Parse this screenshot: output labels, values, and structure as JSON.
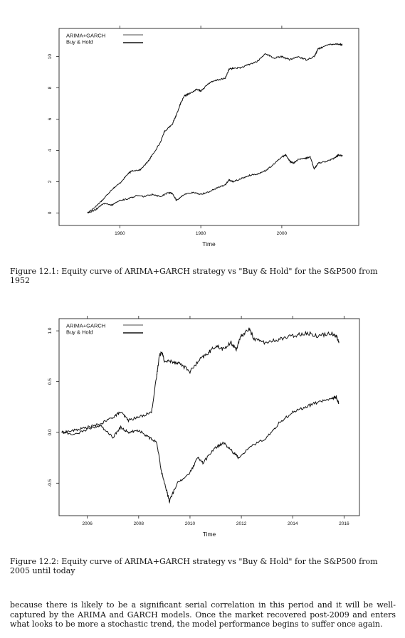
{
  "figures": [
    {
      "caption": "Figure 12.1: Equity curve of ARIMA+GARCH strategy vs \"Buy & Hold\" for the S&P500 from 1952",
      "chart_data": {
        "type": "line",
        "xlabel": "Time",
        "ylabel": "",
        "xlim": [
          1945,
          2019
        ],
        "ylim": [
          -0.8,
          11.8
        ],
        "x_ticks": [
          1960,
          1980,
          2000
        ],
        "y_ticks": [
          0,
          2,
          4,
          6,
          8,
          10
        ],
        "legend_placement": "top-left",
        "series": [
          {
            "name": "ARIMA+GARCH",
            "x": [
              1952,
              1954,
              1956,
              1958,
              1960,
              1962,
              1963,
              1965,
              1967,
              1968,
              1970,
              1971,
              1973,
              1974,
              1975,
              1976,
              1977,
              1979,
              1980,
              1982,
              1984,
              1986,
              1987,
              1988,
              1990,
              1992,
              1994,
              1996,
              1998,
              2000,
              2002,
              2004,
              2006,
              2008,
              2009,
              2010,
              2012,
              2014,
              2015
            ],
            "y": [
              0,
              0.4,
              0.9,
              1.5,
              1.9,
              2.5,
              2.7,
              2.75,
              3.3,
              3.7,
              4.5,
              5.2,
              5.7,
              6.3,
              7.0,
              7.5,
              7.6,
              7.9,
              7.8,
              8.3,
              8.5,
              8.6,
              9.2,
              9.25,
              9.3,
              9.5,
              9.7,
              10.2,
              9.9,
              10.0,
              9.8,
              10.0,
              9.8,
              10.0,
              10.5,
              10.6,
              10.8,
              10.8,
              10.75
            ]
          },
          {
            "name": "Buy & Hold",
            "x": [
              1952,
              1954,
              1956,
              1958,
              1960,
              1962,
              1964,
              1966,
              1968,
              1970,
              1972,
              1973,
              1974,
              1976,
              1978,
              1980,
              1982,
              1984,
              1986,
              1987,
              1988,
              1990,
              1992,
              1994,
              1996,
              1998,
              2000,
              2001,
              2002,
              2003,
              2004,
              2006,
              2007,
              2008,
              2009,
              2011,
              2013,
              2014,
              2015
            ],
            "y": [
              0,
              0.2,
              0.6,
              0.5,
              0.8,
              0.9,
              1.1,
              1.05,
              1.2,
              1.05,
              1.3,
              1.25,
              0.8,
              1.2,
              1.3,
              1.2,
              1.35,
              1.6,
              1.8,
              2.1,
              2.0,
              2.2,
              2.4,
              2.5,
              2.7,
              3.1,
              3.6,
              3.7,
              3.3,
              3.2,
              3.4,
              3.5,
              3.6,
              2.8,
              3.2,
              3.3,
              3.5,
              3.7,
              3.65
            ]
          }
        ]
      }
    },
    {
      "caption": "Figure 12.2: Equity curve of ARIMA+GARCH strategy vs \"Buy & Hold\" for the S&P500 from 2005 until today",
      "chart_data": {
        "type": "line",
        "xlabel": "Time",
        "ylabel": "",
        "xlim": [
          2004.9,
          2016.6
        ],
        "ylim": [
          -0.82,
          1.12
        ],
        "x_ticks": [
          2006,
          2008,
          2010,
          2012,
          2014,
          2016
        ],
        "y_ticks": [
          -0.5,
          0.0,
          0.5,
          1.0
        ],
        "legend_placement": "top-left",
        "series": [
          {
            "name": "ARIMA+GARCH",
            "x": [
              2005.0,
              2005.5,
              2006.0,
              2006.5,
              2007.0,
              2007.3,
              2007.6,
              2008.0,
              2008.5,
              2008.7,
              2008.8,
              2008.9,
              2009.0,
              2009.3,
              2009.6,
              2010.0,
              2010.4,
              2010.7,
              2011.0,
              2011.3,
              2011.6,
              2011.8,
              2012.0,
              2012.3,
              2012.5,
              2013.0,
              2013.5,
              2014.0,
              2014.5,
              2015.0,
              2015.5,
              2015.7,
              2015.8
            ],
            "y": [
              0.0,
              0.02,
              0.05,
              0.08,
              0.15,
              0.2,
              0.12,
              0.15,
              0.2,
              0.55,
              0.75,
              0.8,
              0.7,
              0.7,
              0.68,
              0.6,
              0.72,
              0.78,
              0.85,
              0.82,
              0.88,
              0.82,
              0.95,
              1.02,
              0.92,
              0.88,
              0.92,
              0.95,
              0.98,
              0.95,
              0.98,
              0.95,
              0.88
            ]
          },
          {
            "name": "Buy & Hold",
            "x": [
              2005.0,
              2005.5,
              2006.0,
              2006.5,
              2007.0,
              2007.3,
              2007.6,
              2008.0,
              2008.4,
              2008.7,
              2008.9,
              2009.1,
              2009.2,
              2009.5,
              2010.0,
              2010.3,
              2010.5,
              2011.0,
              2011.3,
              2011.7,
              2011.9,
              2012.3,
              2013.0,
              2013.5,
              2014.0,
              2014.5,
              2015.0,
              2015.5,
              2015.7,
              2015.8
            ],
            "y": [
              0.0,
              -0.02,
              0.03,
              0.07,
              -0.05,
              0.05,
              0.0,
              0.02,
              -0.05,
              -0.1,
              -0.4,
              -0.58,
              -0.68,
              -0.5,
              -0.4,
              -0.25,
              -0.3,
              -0.15,
              -0.1,
              -0.2,
              -0.25,
              -0.15,
              -0.05,
              0.1,
              0.2,
              0.25,
              0.3,
              0.33,
              0.35,
              0.28
            ]
          }
        ]
      }
    }
  ],
  "body_text": "because there is likely to be a significant serial correlation in this period and it will be well-captured by the ARIMA and GARCH models. Once the market recovered post-2009 and enters what looks to be more a stochastic trend, the model performance begins to suffer once again."
}
